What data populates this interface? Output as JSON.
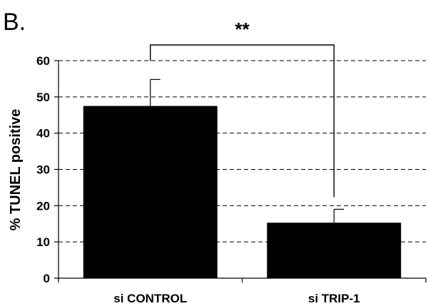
{
  "panel_label": "B.",
  "chart_data": {
    "type": "bar",
    "categories": [
      "si CONTROL",
      "si TRIP-1"
    ],
    "values": [
      47.5,
      15.3
    ],
    "error_bars": [
      7.3,
      3.7
    ],
    "ylabel": "% TUNEL positive",
    "ylim": [
      0,
      60
    ],
    "yticks": [
      0,
      10,
      20,
      30,
      40,
      50,
      60
    ],
    "grid": true,
    "bar_color": "#000000",
    "significance": {
      "label": "**",
      "between": [
        "si CONTROL",
        "si TRIP-1"
      ]
    }
  }
}
